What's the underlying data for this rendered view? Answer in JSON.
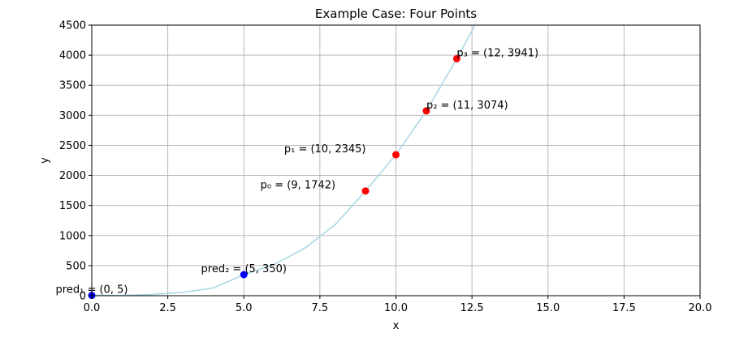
{
  "chart_data": {
    "type": "scatter",
    "title": "Example Case: Four Points",
    "xlabel": "x",
    "ylabel": "y",
    "xlim": [
      0,
      20
    ],
    "ylim": [
      0,
      4500
    ],
    "xticks": [
      "0.0",
      "2.5",
      "5.0",
      "7.5",
      "10.0",
      "12.5",
      "15.0",
      "17.5",
      "20.0"
    ],
    "yticks": [
      "0",
      "500",
      "1000",
      "1500",
      "2000",
      "2500",
      "3000",
      "3500",
      "4000",
      "4500"
    ],
    "grid": true,
    "curve": {
      "color": "#add8e6",
      "points": [
        [
          0,
          5
        ],
        [
          1,
          7
        ],
        [
          2,
          21
        ],
        [
          3,
          55
        ],
        [
          4,
          130
        ],
        [
          5,
          350
        ],
        [
          6,
          520
        ],
        [
          7,
          790
        ],
        [
          8,
          1180
        ],
        [
          9,
          1742
        ],
        [
          10,
          2345
        ],
        [
          11,
          3074
        ],
        [
          12,
          3941
        ],
        [
          12.6,
          4500
        ]
      ]
    },
    "series": [
      {
        "color": "#ff0000",
        "points": [
          {
            "x": 9,
            "y": 1742,
            "label": "p₀ = (9, 1742)",
            "align": "left"
          },
          {
            "x": 10,
            "y": 2345,
            "label": "p₁ = (10, 2345)",
            "align": "left"
          },
          {
            "x": 11,
            "y": 3074,
            "label": "p₂ = (11, 3074)",
            "align": "right"
          },
          {
            "x": 12,
            "y": 3941,
            "label": "p₃ = (12, 3941)",
            "align": "right"
          }
        ]
      },
      {
        "color": "#0000ff",
        "points": [
          {
            "x": 0,
            "y": 5,
            "label": "pred₁ = (0, 5)",
            "align": "center"
          },
          {
            "x": 5,
            "y": 350,
            "label": "pred₂ = (5, 350)",
            "align": "center"
          }
        ]
      }
    ]
  }
}
